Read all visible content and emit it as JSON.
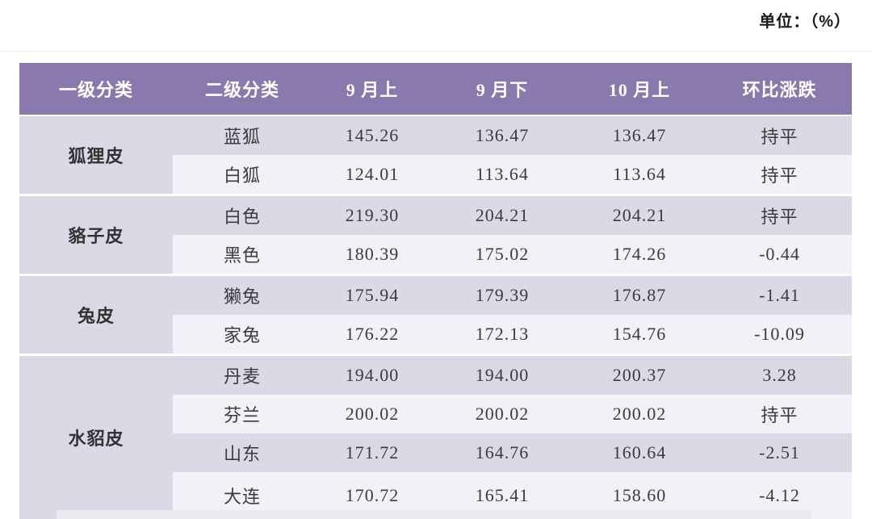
{
  "unit_label": "单位：（%）",
  "colors": {
    "header_bg": "#8a79ac",
    "row_lavender": "#dcd8e6",
    "row_light": "#f3f1f7",
    "text_dark": "#3b3b3b",
    "change_green": "#2fb375",
    "change_pale_green": "#95bb90",
    "change_red": "#d84a50"
  },
  "table": {
    "headers": [
      "一级分类",
      "二级分类",
      "9 月上",
      "9 月下",
      "10 月上",
      "环比涨跌"
    ],
    "groups": [
      {
        "category": "狐狸皮",
        "rows": [
          {
            "sub": "蓝狐",
            "values": [
              "145.26",
              "136.47",
              "136.47"
            ],
            "change": "持平",
            "change_color": "dark"
          },
          {
            "sub": "白狐",
            "values": [
              "124.01",
              "113.64",
              "113.64"
            ],
            "change": "持平",
            "change_color": "pale_green"
          }
        ]
      },
      {
        "category": "貉子皮",
        "rows": [
          {
            "sub": "白色",
            "values": [
              "219.30",
              "204.21",
              "204.21"
            ],
            "change": "持平",
            "change_color": "dark"
          },
          {
            "sub": "黑色",
            "values": [
              "180.39",
              "175.02",
              "174.26"
            ],
            "change": "-0.44",
            "change_color": "green"
          }
        ]
      },
      {
        "category": "兔皮",
        "rows": [
          {
            "sub": "獭兔",
            "values": [
              "175.94",
              "179.39",
              "176.87"
            ],
            "change": "-1.41",
            "change_color": "green"
          },
          {
            "sub": "家兔",
            "values": [
              "176.22",
              "172.13",
              "154.76"
            ],
            "change": "-10.09",
            "change_color": "green"
          }
        ]
      },
      {
        "category": "水貂皮",
        "rows": [
          {
            "sub": "丹麦",
            "values": [
              "194.00",
              "194.00",
              "200.37"
            ],
            "change": "3.28",
            "change_color": "red"
          },
          {
            "sub": "芬兰",
            "values": [
              "200.02",
              "200.02",
              "200.02"
            ],
            "change": "持平",
            "change_color": "dark"
          },
          {
            "sub": "山东",
            "values": [
              "171.72",
              "164.76",
              "160.64"
            ],
            "change": "-2.51",
            "change_color": "pale_green"
          },
          {
            "sub": "大连",
            "values": [
              "170.72",
              "165.41",
              "158.60"
            ],
            "change": "-4.12",
            "change_color": "pale_green"
          }
        ]
      }
    ]
  },
  "chart_data": {
    "type": "table",
    "title": "",
    "unit": "单位：（%）",
    "columns": [
      "一级分类",
      "二级分类",
      "9月上",
      "9月下",
      "10月上",
      "环比涨跌"
    ],
    "rows": [
      [
        "狐狸皮",
        "蓝狐",
        145.26,
        136.47,
        136.47,
        "持平"
      ],
      [
        "狐狸皮",
        "白狐",
        124.01,
        113.64,
        113.64,
        "持平"
      ],
      [
        "貉子皮",
        "白色",
        219.3,
        204.21,
        204.21,
        "持平"
      ],
      [
        "貉子皮",
        "黑色",
        180.39,
        175.02,
        174.26,
        -0.44
      ],
      [
        "兔皮",
        "獭兔",
        175.94,
        179.39,
        176.87,
        -1.41
      ],
      [
        "兔皮",
        "家兔",
        176.22,
        172.13,
        154.76,
        -10.09
      ],
      [
        "水貂皮",
        "丹麦",
        194.0,
        194.0,
        200.37,
        3.28
      ],
      [
        "水貂皮",
        "芬兰",
        200.02,
        200.02,
        200.02,
        "持平"
      ],
      [
        "水貂皮",
        "山东",
        171.72,
        164.76,
        160.64,
        -2.51
      ],
      [
        "水貂皮",
        "大连",
        170.72,
        165.41,
        158.6,
        -4.12
      ]
    ]
  }
}
